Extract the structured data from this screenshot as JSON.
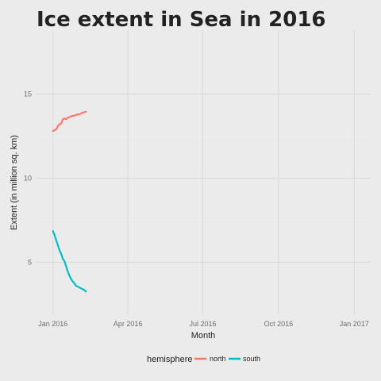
{
  "chart_data": {
    "type": "line",
    "title": "Ice extent in Sea in 2016",
    "xlabel": "Month",
    "ylabel": "Extent (in million sq. km)",
    "xlim": [
      "2015-12-12",
      "2017-01-20"
    ],
    "ylim": [
      1.9,
      18.8
    ],
    "x_ticks": [
      "2016-01-01",
      "2016-04-01",
      "2016-07-01",
      "2016-10-01",
      "2017-01-01"
    ],
    "x_tick_labels": [
      "Jan 2016",
      "Apr 2016",
      "Jul 2016",
      "Oct 2016",
      "Jan 2017"
    ],
    "y_ticks": [
      5,
      10,
      15
    ],
    "y_tick_labels": [
      "5",
      "10",
      "15"
    ],
    "grid": true,
    "legend": {
      "title": "hemisphere",
      "position": "bottom",
      "entries": [
        "north",
        "south"
      ]
    },
    "series": [
      {
        "name": "north",
        "color": "#f8766d",
        "x": [
          "2016-01-01",
          "2016-01-03",
          "2016-01-05",
          "2016-01-07",
          "2016-01-09",
          "2016-01-11",
          "2016-01-13",
          "2016-01-15",
          "2016-01-17",
          "2016-01-19",
          "2016-01-21",
          "2016-01-23",
          "2016-01-25",
          "2016-01-27",
          "2016-01-29",
          "2016-01-31",
          "2016-02-02",
          "2016-02-04",
          "2016-02-06",
          "2016-02-08",
          "2016-02-10"
        ],
        "y": [
          12.8,
          12.85,
          12.9,
          13.1,
          13.2,
          13.25,
          13.5,
          13.55,
          13.5,
          13.6,
          13.62,
          13.68,
          13.7,
          13.72,
          13.75,
          13.8,
          13.78,
          13.85,
          13.88,
          13.92,
          13.95
        ]
      },
      {
        "name": "south",
        "color": "#00bfc4",
        "x": [
          "2016-01-01",
          "2016-01-03",
          "2016-01-05",
          "2016-01-07",
          "2016-01-09",
          "2016-01-11",
          "2016-01-13",
          "2016-01-15",
          "2016-01-17",
          "2016-01-19",
          "2016-01-21",
          "2016-01-23",
          "2016-01-25",
          "2016-01-27",
          "2016-01-29",
          "2016-01-31",
          "2016-02-02",
          "2016-02-04",
          "2016-02-06",
          "2016-02-08",
          "2016-02-10"
        ],
        "y": [
          6.85,
          6.6,
          6.3,
          6.0,
          5.7,
          5.5,
          5.2,
          5.05,
          4.75,
          4.45,
          4.2,
          4.0,
          3.85,
          3.75,
          3.6,
          3.55,
          3.5,
          3.45,
          3.4,
          3.35,
          3.25
        ]
      }
    ]
  }
}
